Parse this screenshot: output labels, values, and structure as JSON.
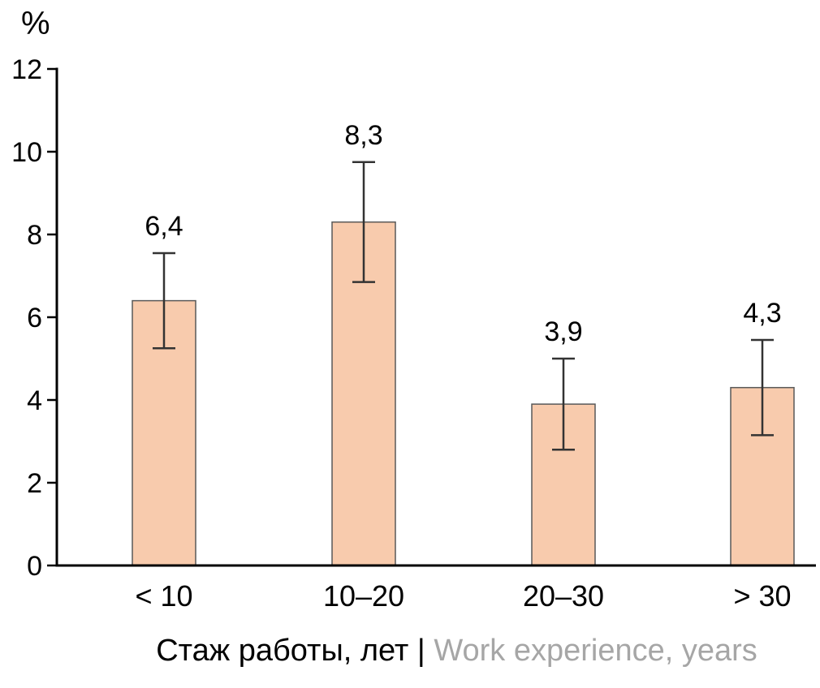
{
  "chart_data": {
    "type": "bar",
    "title": "",
    "ylabel": "%",
    "xlabel_ru": "Стаж работы, лет | ",
    "xlabel_en": "Work experience, years",
    "categories": [
      "< 10",
      "10–20",
      "20–30",
      "> 30"
    ],
    "values": [
      6.4,
      8.3,
      3.9,
      4.3
    ],
    "value_labels": [
      "6,4",
      "8,3",
      "3,9",
      "4,3"
    ],
    "errors": [
      1.15,
      1.45,
      1.1,
      1.15
    ],
    "ylim": [
      0,
      12
    ],
    "ytick_step": 2,
    "ytick_labels": [
      "0",
      "2",
      "4",
      "6",
      "8",
      "10",
      "12"
    ],
    "grid": false,
    "legend": false,
    "colors": {
      "bar_fill": "#F8CBAD",
      "bar_border": "#595959",
      "error_bar": "#333333",
      "axis": "#000000",
      "text": "#000000",
      "xlabel_en": "#A6A6A6",
      "background": "#FFFFFF"
    }
  }
}
